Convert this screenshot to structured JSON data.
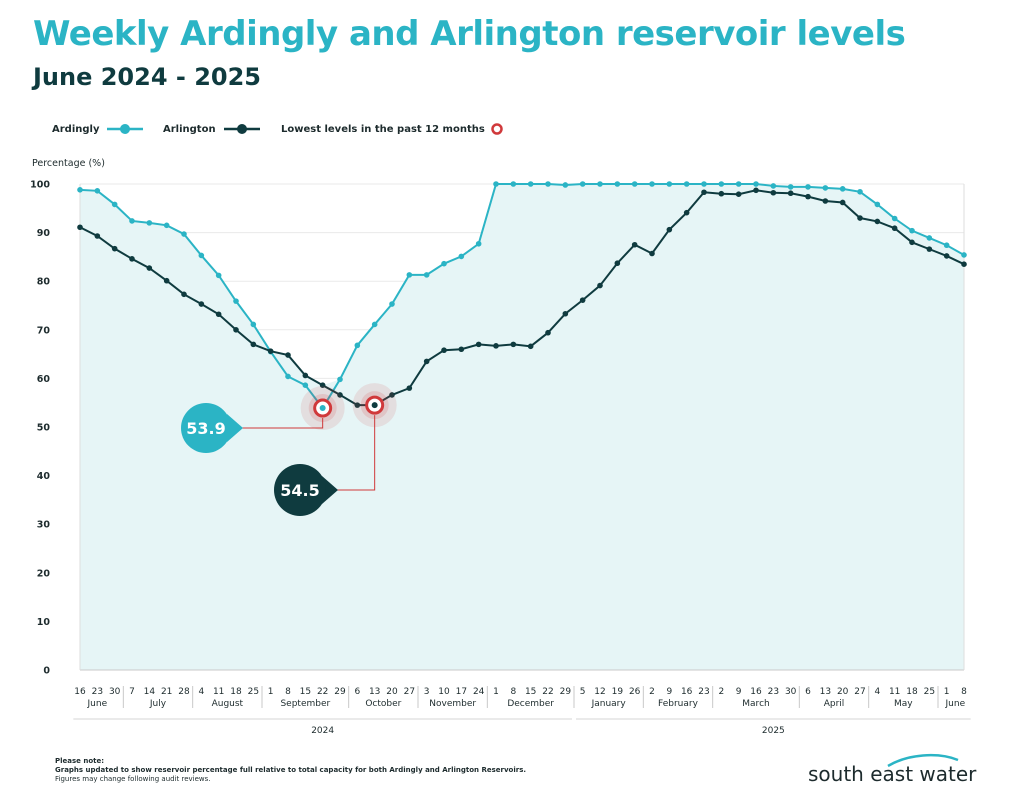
{
  "title": "Weekly Ardingly and Arlington reservoir levels",
  "subtitle": "June 2024 - 2025",
  "legend": {
    "ardingly": "Ardingly",
    "arlington": "Arlington",
    "lowest": "Lowest levels in the past 12 months"
  },
  "notes": {
    "heading": "Please note:",
    "line1": "Graphs updated to show reservoir percentage full relative to total capacity for both Ardingly and Arlington Reservoirs.",
    "line2": "Figures may change following audit reviews."
  },
  "brand": "south east water",
  "colors": {
    "ardingly": "#2bb4c5",
    "arlington": "#0f3b3f",
    "fill": "#e6f5f6",
    "lowest_marker": "#d0393b"
  },
  "chart_data": {
    "type": "line",
    "ylabel": "Percentage (%)",
    "ylim": [
      0,
      100
    ],
    "yticks": [
      0,
      10,
      20,
      30,
      40,
      50,
      60,
      70,
      80,
      90,
      100
    ],
    "x_day_labels": [
      "16",
      "23",
      "30",
      "7",
      "14",
      "21",
      "28",
      "4",
      "11",
      "18",
      "25",
      "1",
      "8",
      "15",
      "22",
      "29",
      "6",
      "13",
      "20",
      "27",
      "3",
      "10",
      "17",
      "24",
      "1",
      "8",
      "15",
      "22",
      "29",
      "5",
      "12",
      "19",
      "26",
      "2",
      "9",
      "16",
      "23",
      "2",
      "9",
      "16",
      "23",
      "30",
      "6",
      "13",
      "20",
      "27",
      "4",
      "11",
      "18",
      "25",
      "1",
      "8"
    ],
    "months": [
      {
        "label": "June",
        "start": 0,
        "end": 2
      },
      {
        "label": "July",
        "start": 3,
        "end": 6
      },
      {
        "label": "August",
        "start": 7,
        "end": 10
      },
      {
        "label": "September",
        "start": 11,
        "end": 15
      },
      {
        "label": "October",
        "start": 16,
        "end": 19
      },
      {
        "label": "November",
        "start": 20,
        "end": 23
      },
      {
        "label": "December",
        "start": 24,
        "end": 28
      },
      {
        "label": "January",
        "start": 29,
        "end": 32
      },
      {
        "label": "February",
        "start": 33,
        "end": 36
      },
      {
        "label": "March",
        "start": 37,
        "end": 41
      },
      {
        "label": "April",
        "start": 42,
        "end": 45
      },
      {
        "label": "May",
        "start": 46,
        "end": 49
      },
      {
        "label": "June",
        "start": 50,
        "end": 51
      }
    ],
    "years": [
      {
        "label": "2024",
        "start": 0,
        "end": 28
      },
      {
        "label": "2025",
        "start": 29,
        "end": 51
      }
    ],
    "series": [
      {
        "name": "Ardingly",
        "values": [
          98.8,
          98.6,
          95.8,
          92.4,
          92.0,
          91.5,
          89.7,
          85.3,
          81.2,
          75.9,
          71.1,
          65.5,
          60.4,
          58.6,
          53.9,
          59.8,
          66.8,
          71.1,
          75.3,
          81.3,
          81.3,
          83.6,
          85.1,
          87.7,
          100,
          100,
          100,
          100,
          99.8,
          100,
          100,
          100,
          100,
          100,
          100,
          100,
          100,
          100,
          100,
          100,
          99.6,
          99.4,
          99.4,
          99.2,
          99.0,
          98.4,
          95.8,
          92.9,
          90.4,
          88.9,
          87.4,
          85.4
        ]
      },
      {
        "name": "Arlington",
        "values": [
          91.1,
          89.3,
          86.7,
          84.6,
          82.7,
          80.1,
          77.3,
          75.3,
          73.2,
          70.0,
          67.0,
          65.6,
          64.8,
          60.6,
          58.6,
          56.6,
          54.5,
          54.5,
          56.6,
          58.0,
          63.5,
          65.8,
          66.0,
          67.0,
          66.7,
          67.0,
          66.6,
          69.4,
          73.3,
          76.1,
          79.1,
          83.7,
          87.5,
          85.7,
          90.6,
          94.1,
          98.3,
          98.0,
          97.9,
          98.7,
          98.2,
          98.1,
          97.4,
          96.5,
          96.2,
          93.0,
          92.3,
          90.9,
          88.0,
          86.6,
          85.2,
          83.5
        ]
      }
    ],
    "lowest": [
      {
        "series": "Ardingly",
        "index": 14,
        "value": 53.9,
        "label": "53.9"
      },
      {
        "series": "Arlington",
        "index": 17,
        "value": 54.5,
        "label": "54.5"
      }
    ]
  }
}
